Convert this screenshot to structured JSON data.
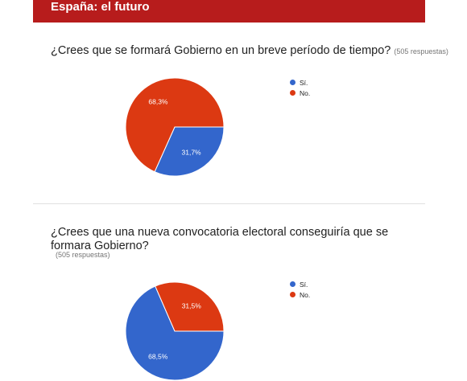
{
  "header": {
    "title": "España: el futuro",
    "color": "#b71c1c"
  },
  "colors": {
    "si": "#3366cc",
    "no": "#dc3912"
  },
  "questions": [
    {
      "title": "¿Crees que se formará Gobierno en un breve período de tiempo?",
      "responses": "(505 respuestas)",
      "legend": [
        "Sí.",
        "No."
      ]
    },
    {
      "title": "¿Crees que una nueva convocatoria electoral conseguiría que se formara Gobierno?",
      "responses": "(505 respuestas)",
      "legend": [
        "Sí.",
        "No."
      ]
    }
  ],
  "chart_data": [
    {
      "type": "pie",
      "title": "¿Crees que se formará Gobierno en un breve período de tiempo?",
      "categories": [
        "Sí.",
        "No."
      ],
      "values": [
        31.7,
        68.3
      ],
      "labels": [
        "31,7%",
        "68,3%"
      ],
      "colors": [
        "#3366cc",
        "#dc3912"
      ],
      "legend": "right"
    },
    {
      "type": "pie",
      "title": "¿Crees que una nueva convocatoria electoral conseguiría que se formara Gobierno?",
      "categories": [
        "Sí.",
        "No."
      ],
      "values": [
        68.5,
        31.5
      ],
      "labels": [
        "68,5%",
        "31,5%"
      ],
      "colors": [
        "#3366cc",
        "#dc3912"
      ],
      "legend": "right"
    }
  ]
}
